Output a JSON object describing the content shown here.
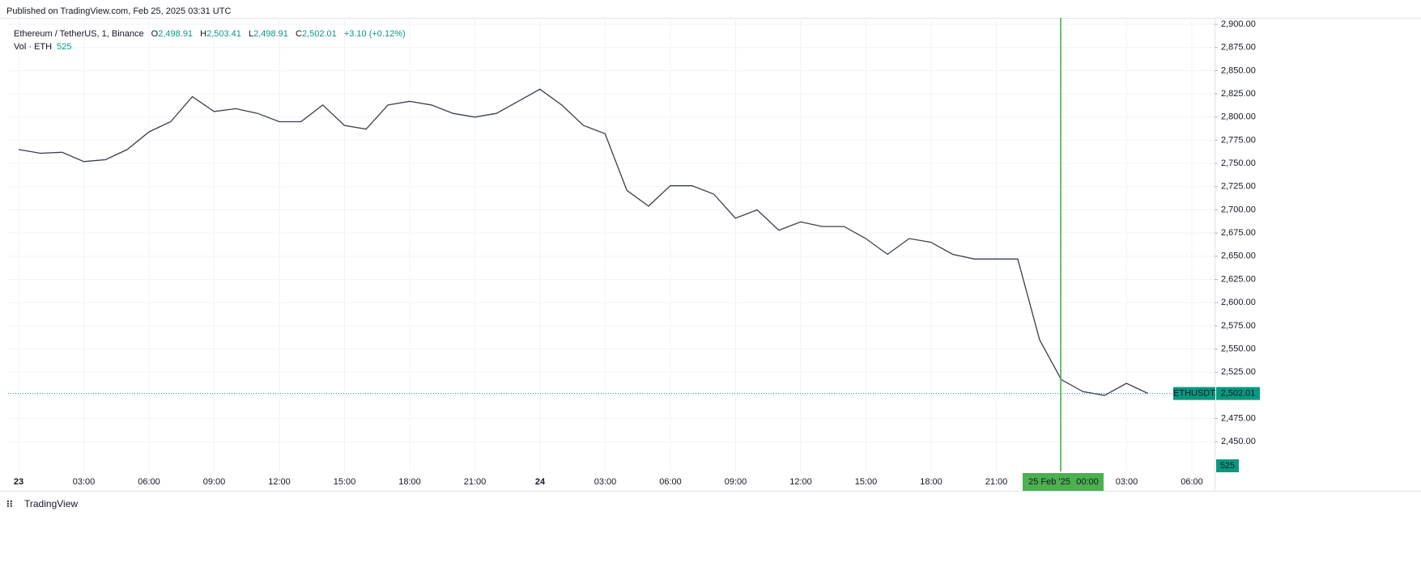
{
  "header": "Published on TradingView.com, Feb 25, 2025 03:31 UTC",
  "footer": "TradingView",
  "chart_data": {
    "type": "line",
    "series": [
      {
        "name": "Ethereum / TetherUS, 1, Binance",
        "color": "#3a3f4b",
        "values": [
          2765,
          2761,
          2762,
          2752,
          2754,
          2765,
          2784,
          2795,
          2822,
          2806,
          2809,
          2804,
          2795,
          2795,
          2813,
          2791,
          2787,
          2813,
          2817,
          2813,
          2804,
          2800,
          2804,
          2817,
          2830,
          2813,
          2791,
          2782,
          2721,
          2704,
          2726,
          2726,
          2717,
          2691,
          2700,
          2678,
          2687,
          2682,
          2682,
          2669,
          2652,
          2669,
          2665,
          2652,
          2647,
          2647,
          2647,
          2560,
          2517,
          2504,
          2500,
          2513,
          2502.01
        ]
      }
    ],
    "legend": {
      "open_key": "O",
      "open": "2,498.91",
      "high_key": "H",
      "high": "2,503.41",
      "low_key": "L",
      "low": "2,498.91",
      "close_key": "C",
      "close": "2,502.01",
      "change": "+3.10 (+0.12%)",
      "volume_name": "Vol · ETH",
      "volume": "525"
    },
    "last_price": {
      "name": "ETHUSDT",
      "value": 2502.01,
      "label": "2,502.01"
    },
    "volume_label": "525",
    "crosshair": {
      "date": "25 Feb '25",
      "time": "00:00"
    },
    "ylim": [
      2418,
      2907
    ],
    "yticks": [
      {
        "value": 2900,
        "label": "2,900.00"
      },
      {
        "value": 2875,
        "label": "2,875.00"
      },
      {
        "value": 2850,
        "label": "2,850.00"
      },
      {
        "value": 2825,
        "label": "2,825.00"
      },
      {
        "value": 2800,
        "label": "2,800.00"
      },
      {
        "value": 2775,
        "label": "2,775.00"
      },
      {
        "value": 2750,
        "label": "2,750.00"
      },
      {
        "value": 2725,
        "label": "2,725.00"
      },
      {
        "value": 2700,
        "label": "2,700.00"
      },
      {
        "value": 2675,
        "label": "2,675.00"
      },
      {
        "value": 2650,
        "label": "2,650.00"
      },
      {
        "value": 2625,
        "label": "2,625.00"
      },
      {
        "value": 2600,
        "label": "2,600.00"
      },
      {
        "value": 2575,
        "label": "2,575.00"
      },
      {
        "value": 2550,
        "label": "2,550.00"
      },
      {
        "value": 2525,
        "label": "2,525.00"
      },
      {
        "value": 2500,
        "label": "2,500.00"
      },
      {
        "value": 2475,
        "label": "2,475.00"
      },
      {
        "value": 2450,
        "label": "2,450.00"
      }
    ],
    "xticks": [
      "23",
      "03:00",
      "06:00",
      "09:00",
      "12:00",
      "15:00",
      "18:00",
      "21:00",
      "24",
      "03:00",
      "06:00",
      "09:00",
      "12:00",
      "15:00",
      "18:00",
      "21:00",
      null,
      "03:00",
      "06:00"
    ],
    "grid": true
  }
}
